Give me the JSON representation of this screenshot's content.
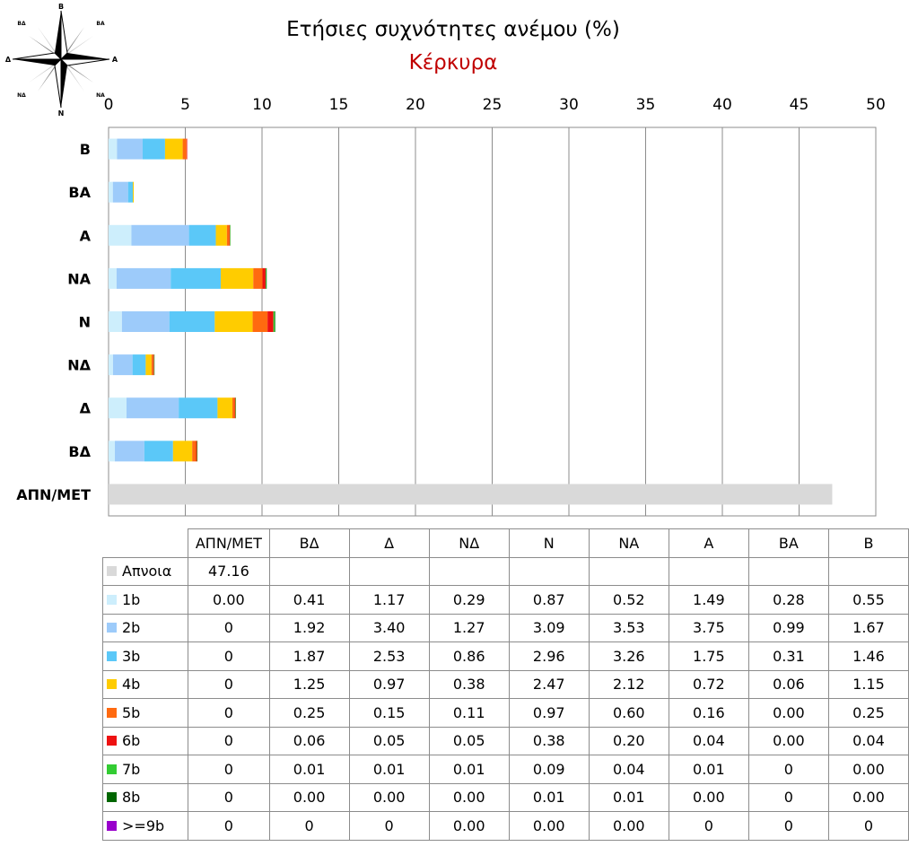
{
  "title": "Ετήσιες συχνότητες ανέμου (%)",
  "subtitle": "Κέρκυρα",
  "compass": {
    "icon": "wind-rose-icon",
    "labels": [
      "Β",
      "ΒΑ",
      "Α",
      "ΝΑ",
      "Ν",
      "ΝΔ",
      "Δ",
      "ΒΔ"
    ]
  },
  "chart_data": {
    "type": "bar",
    "orientation": "horizontal",
    "stacked": true,
    "xlim": [
      0,
      50
    ],
    "x_ticks": [
      "0",
      "5",
      "10",
      "15",
      "20",
      "25",
      "30",
      "35",
      "40",
      "45",
      "50"
    ],
    "x_axis_position": "top",
    "grid": true,
    "categories": [
      "Β",
      "ΒΑ",
      "Α",
      "ΝΑ",
      "Ν",
      "ΝΔ",
      "Δ",
      "ΒΔ",
      "ΑΠΝ/ΜΕΤ"
    ],
    "series": [
      {
        "name": "Απνοια",
        "color": "#d9d9d9",
        "values": [
          0,
          0,
          0,
          0,
          0,
          0,
          0,
          0,
          47.16
        ]
      },
      {
        "name": "1b",
        "color": "#cdeefc",
        "values": [
          0.55,
          0.28,
          1.49,
          0.52,
          0.87,
          0.29,
          1.17,
          0.41,
          0.0
        ]
      },
      {
        "name": "2b",
        "color": "#9dcbfa",
        "values": [
          1.67,
          0.99,
          3.75,
          3.53,
          3.09,
          1.27,
          3.4,
          1.92,
          0
        ]
      },
      {
        "name": "3b",
        "color": "#5bc8f8",
        "values": [
          1.46,
          0.31,
          1.75,
          3.26,
          2.96,
          0.86,
          2.53,
          1.87,
          0
        ]
      },
      {
        "name": "4b",
        "color": "#ffcc00",
        "values": [
          1.15,
          0.06,
          0.72,
          2.12,
          2.47,
          0.38,
          0.97,
          1.25,
          0
        ]
      },
      {
        "name": "5b",
        "color": "#ff6a10",
        "values": [
          0.25,
          0.0,
          0.16,
          0.6,
          0.97,
          0.11,
          0.15,
          0.25,
          0
        ]
      },
      {
        "name": "6b",
        "color": "#ee1111",
        "values": [
          0.04,
          0.0,
          0.04,
          0.2,
          0.38,
          0.05,
          0.05,
          0.06,
          0
        ]
      },
      {
        "name": "7b",
        "color": "#33cc33",
        "values": [
          0.0,
          0,
          0.01,
          0.04,
          0.09,
          0.01,
          0.01,
          0.01,
          0
        ]
      },
      {
        "name": "8b",
        "color": "#006600",
        "values": [
          0.0,
          0,
          0.0,
          0.01,
          0.01,
          0.0,
          0.0,
          0.0,
          0
        ]
      },
      {
        "name": ">=9b",
        "color": "#9900cc",
        "values": [
          0,
          0,
          0,
          0.0,
          0.0,
          0.0,
          0,
          0,
          0
        ]
      }
    ]
  },
  "table": {
    "columns": [
      "ΑΠΝ/ΜΕΤ",
      "ΒΔ",
      "Δ",
      "ΝΔ",
      "Ν",
      "ΝΑ",
      "Α",
      "ΒΑ",
      "Β"
    ],
    "rows": [
      {
        "label": "Απνοια",
        "color": "#d9d9d9",
        "cells": [
          "47.16",
          "",
          "",
          "",
          "",
          "",
          "",
          "",
          ""
        ]
      },
      {
        "label": "1b",
        "color": "#cdeefc",
        "cells": [
          "0.00",
          "0.41",
          "1.17",
          "0.29",
          "0.87",
          "0.52",
          "1.49",
          "0.28",
          "0.55"
        ]
      },
      {
        "label": "2b",
        "color": "#9dcbfa",
        "cells": [
          "0",
          "1.92",
          "3.40",
          "1.27",
          "3.09",
          "3.53",
          "3.75",
          "0.99",
          "1.67"
        ]
      },
      {
        "label": "3b",
        "color": "#5bc8f8",
        "cells": [
          "0",
          "1.87",
          "2.53",
          "0.86",
          "2.96",
          "3.26",
          "1.75",
          "0.31",
          "1.46"
        ]
      },
      {
        "label": "4b",
        "color": "#ffcc00",
        "cells": [
          "0",
          "1.25",
          "0.97",
          "0.38",
          "2.47",
          "2.12",
          "0.72",
          "0.06",
          "1.15"
        ]
      },
      {
        "label": "5b",
        "color": "#ff6a10",
        "cells": [
          "0",
          "0.25",
          "0.15",
          "0.11",
          "0.97",
          "0.60",
          "0.16",
          "0.00",
          "0.25"
        ]
      },
      {
        "label": "6b",
        "color": "#ee1111",
        "cells": [
          "0",
          "0.06",
          "0.05",
          "0.05",
          "0.38",
          "0.20",
          "0.04",
          "0.00",
          "0.04"
        ]
      },
      {
        "label": "7b",
        "color": "#33cc33",
        "cells": [
          "0",
          "0.01",
          "0.01",
          "0.01",
          "0.09",
          "0.04",
          "0.01",
          "0",
          "0.00"
        ]
      },
      {
        "label": "8b",
        "color": "#006600",
        "cells": [
          "0",
          "0.00",
          "0.00",
          "0.00",
          "0.01",
          "0.01",
          "0.00",
          "0",
          "0.00"
        ]
      },
      {
        "label": ">=9b",
        "color": "#9900cc",
        "cells": [
          "0",
          "0",
          "0",
          "0.00",
          "0.00",
          "0.00",
          "0",
          "0",
          "0"
        ]
      }
    ]
  }
}
